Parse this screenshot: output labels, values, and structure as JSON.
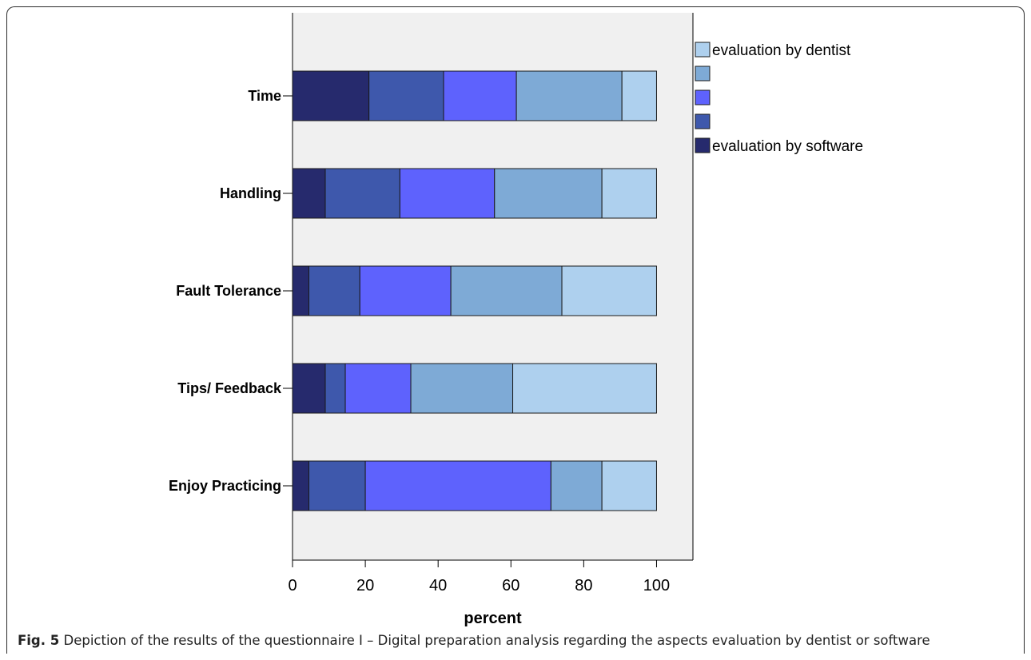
{
  "caption": {
    "label": "Fig. 5",
    "text": "Depiction of the results of the questionnaire I – Digital preparation analysis regarding the aspects evaluation by dentist or software"
  },
  "chart_data": {
    "type": "bar",
    "orientation": "horizontal",
    "stacked": true,
    "categories": [
      "Time",
      "Handling",
      "Fault Tolerance",
      "Tips/ Feedback",
      "Enjoy Practicing"
    ],
    "xlabel": "percent",
    "ylabel": "",
    "xlim": [
      0,
      110
    ],
    "xticks": [
      0,
      20,
      40,
      60,
      80,
      100
    ],
    "grid": false,
    "legend_position": "right",
    "legend_order": [
      "evaluation by dentist",
      "",
      "",
      "",
      "evaluation by software"
    ],
    "series": [
      {
        "name": "evaluation by software",
        "color": "#262a6d",
        "values": [
          21,
          9,
          4.5,
          9,
          4.5
        ]
      },
      {
        "name": "",
        "color": "#3e58ac",
        "values": [
          20.5,
          20.5,
          14,
          5.5,
          15.5
        ]
      },
      {
        "name": "",
        "color": "#5e62fd",
        "values": [
          20,
          26,
          25,
          18,
          51
        ]
      },
      {
        "name": "",
        "color": "#7eaad6",
        "values": [
          29,
          29.5,
          30.5,
          28,
          14
        ]
      },
      {
        "name": "evaluation by dentist",
        "color": "#aed0ee",
        "values": [
          9.5,
          15,
          26,
          39.5,
          15
        ]
      }
    ],
    "plot_background": "#f0f0f0"
  }
}
